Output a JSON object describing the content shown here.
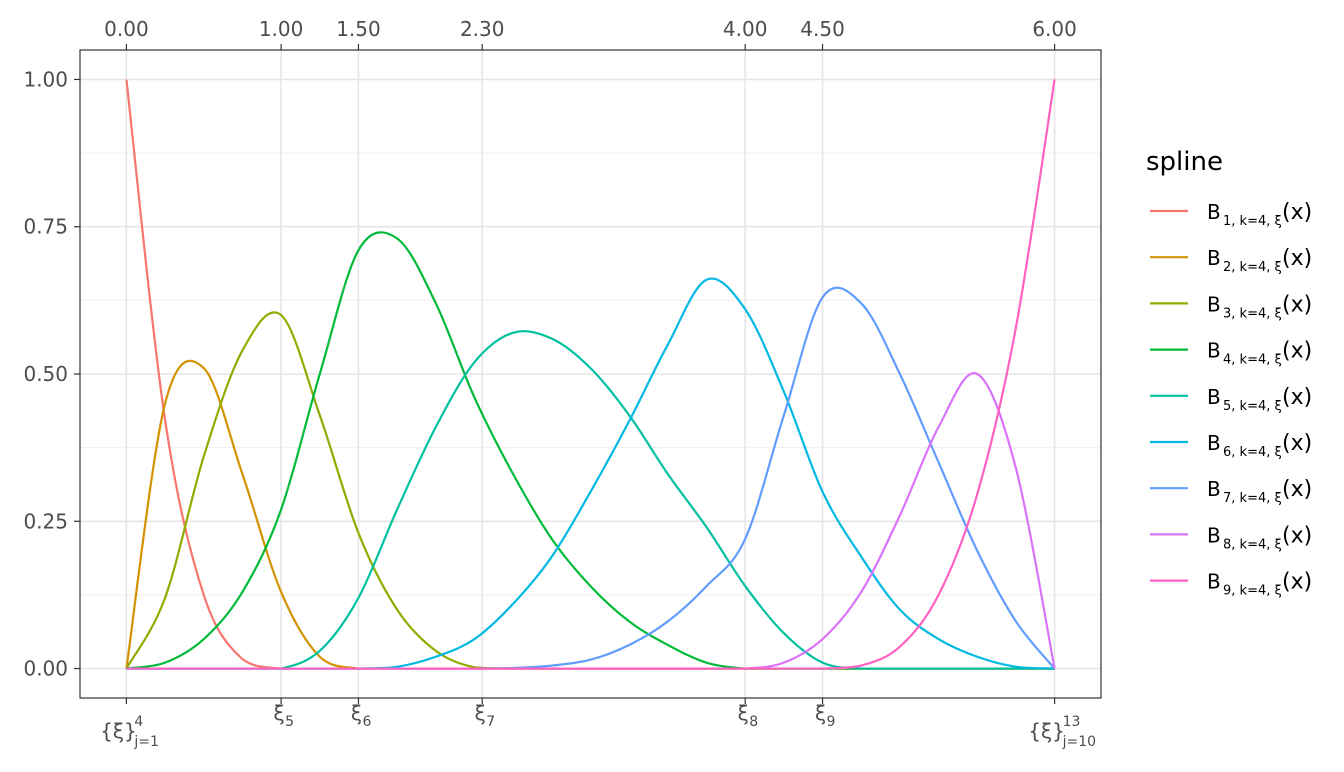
{
  "chart_data": {
    "type": "line",
    "x": [
      0,
      0.25,
      0.5,
      0.75,
      1,
      1.25,
      1.5,
      1.75,
      2,
      2.25,
      2.5,
      2.75,
      3,
      3.25,
      3.5,
      3.75,
      4,
      4.25,
      4.5,
      4.75,
      5,
      5.25,
      5.5,
      5.75,
      6
    ],
    "series": [
      {
        "name": "B",
        "name_sub": "1, k=4, ξ",
        "name_suffix": "(x)",
        "color": "#F8766D",
        "values": [
          1,
          0.422,
          0.125,
          0.016,
          0,
          0,
          0,
          0,
          0,
          0,
          0,
          0,
          0,
          0,
          0,
          0,
          0,
          0,
          0,
          0,
          0,
          0,
          0,
          0,
          0
        ]
      },
      {
        "name": "B",
        "name_sub": "2, k=4, ξ",
        "name_suffix": "(x)",
        "color": "#D39200",
        "values": [
          0,
          0.45,
          0.51,
          0.33,
          0.13,
          0.02,
          0,
          0,
          0,
          0,
          0,
          0,
          0,
          0,
          0,
          0,
          0,
          0,
          0,
          0,
          0,
          0,
          0,
          0,
          0
        ]
      },
      {
        "name": "B",
        "name_sub": "3, k=4, ξ",
        "name_suffix": "(x)",
        "color": "#93AA00",
        "values": [
          0,
          0.12,
          0.36,
          0.54,
          0.6,
          0.43,
          0.23,
          0.1,
          0.03,
          0.002,
          0,
          0,
          0,
          0,
          0,
          0,
          0,
          0,
          0,
          0,
          0,
          0,
          0,
          0,
          0
        ]
      },
      {
        "name": "B",
        "name_sub": "4, k=4, ξ",
        "name_suffix": "(x)",
        "color": "#00BA38",
        "values": [
          0,
          0.01,
          0.05,
          0.13,
          0.27,
          0.5,
          0.71,
          0.73,
          0.62,
          0.46,
          0.33,
          0.22,
          0.14,
          0.08,
          0.04,
          0.01,
          0,
          0,
          0,
          0,
          0,
          0,
          0,
          0,
          0
        ]
      },
      {
        "name": "B",
        "name_sub": "5, k=4, ξ",
        "name_suffix": "(x)",
        "color": "#00C19F",
        "values": [
          0,
          0,
          0,
          0,
          0,
          0.03,
          0.12,
          0.27,
          0.41,
          0.52,
          0.57,
          0.56,
          0.51,
          0.43,
          0.33,
          0.24,
          0.14,
          0.06,
          0.01,
          0,
          0,
          0,
          0,
          0,
          0
        ]
      },
      {
        "name": "B",
        "name_sub": "6, k=4, ξ",
        "name_suffix": "(x)",
        "color": "#00B9E3",
        "values": [
          0,
          0,
          0,
          0,
          0,
          0,
          0,
          0.003,
          0.02,
          0.05,
          0.11,
          0.19,
          0.3,
          0.42,
          0.55,
          0.66,
          0.61,
          0.47,
          0.3,
          0.19,
          0.1,
          0.05,
          0.02,
          0.003,
          0
        ]
      },
      {
        "name": "B",
        "name_sub": "7, k=4, ξ",
        "name_suffix": "(x)",
        "color": "#619CFF",
        "values": [
          0,
          0,
          0,
          0,
          0,
          0,
          0,
          0,
          0,
          0,
          0.001,
          0.005,
          0.015,
          0.04,
          0.08,
          0.14,
          0.22,
          0.43,
          0.63,
          0.62,
          0.5,
          0.35,
          0.2,
          0.08,
          0
        ]
      },
      {
        "name": "B",
        "name_sub": "8, k=4, ξ",
        "name_suffix": "(x)",
        "color": "#DB72FB",
        "values": [
          0,
          0,
          0,
          0,
          0,
          0,
          0,
          0,
          0,
          0,
          0,
          0,
          0,
          0,
          0,
          0,
          0,
          0.01,
          0.05,
          0.13,
          0.26,
          0.41,
          0.5,
          0.34,
          0
        ]
      },
      {
        "name": "B",
        "name_sub": "9, k=4, ξ",
        "name_suffix": "(x)",
        "color": "#FF61C3",
        "values": [
          0,
          0,
          0,
          0,
          0,
          0,
          0,
          0,
          0,
          0,
          0,
          0,
          0,
          0,
          0,
          0,
          0,
          0,
          0,
          0.005,
          0.037,
          0.125,
          0.296,
          0.579,
          1
        ]
      }
    ],
    "xlim": [
      -0.3,
      6.3
    ],
    "ylim": [
      -0.05,
      1.05
    ],
    "xticks_top": [
      {
        "value": 0,
        "label": "0.00"
      },
      {
        "value": 1,
        "label": "1.00"
      },
      {
        "value": 1.5,
        "label": "1.50"
      },
      {
        "value": 2.3,
        "label": "2.30"
      },
      {
        "value": 4,
        "label": "4.00"
      },
      {
        "value": 4.5,
        "label": "4.50"
      },
      {
        "value": 6,
        "label": "6.00"
      }
    ],
    "xticks_bottom": [
      {
        "value": 0,
        "label": "{ξ}",
        "sub": "j=1",
        "sup": "4"
      },
      {
        "value": 1,
        "label": "ξ",
        "sub": "5"
      },
      {
        "value": 1.5,
        "label": "ξ",
        "sub": "6"
      },
      {
        "value": 2.3,
        "label": "ξ",
        "sub": "7"
      },
      {
        "value": 4,
        "label": "ξ",
        "sub": "8"
      },
      {
        "value": 4.5,
        "label": "ξ",
        "sub": "9"
      },
      {
        "value": 6,
        "label": "{ξ}",
        "sub": "j=10",
        "sup": "13"
      }
    ],
    "yticks": [
      {
        "value": 0,
        "label": "0.00"
      },
      {
        "value": 0.25,
        "label": "0.25"
      },
      {
        "value": 0.5,
        "label": "0.50"
      },
      {
        "value": 0.75,
        "label": "0.75"
      },
      {
        "value": 1,
        "label": "1.00"
      }
    ],
    "y_minor_ticks": [
      0.125,
      0.375,
      0.625,
      0.875
    ],
    "grid": true,
    "legend_title": "spline",
    "legend_position": "right"
  }
}
